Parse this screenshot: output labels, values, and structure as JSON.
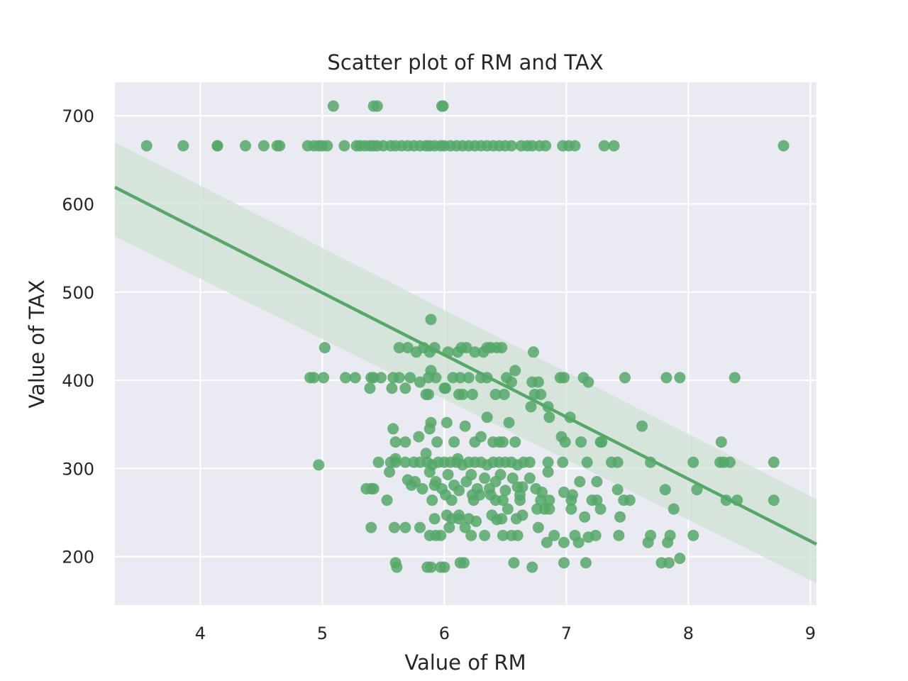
{
  "chart_data": {
    "type": "scatter",
    "title": "Scatter plot of RM and TAX",
    "xlabel": "Value of RM",
    "ylabel": "Value of TAX",
    "xlim": [
      3.3,
      9.05
    ],
    "ylim": [
      145,
      738
    ],
    "xticks": [
      4,
      5,
      6,
      7,
      8,
      9
    ],
    "yticks": [
      200,
      300,
      400,
      500,
      600,
      700
    ],
    "grid": true,
    "legend": "none",
    "colors": {
      "background": "#eaeaf2",
      "grid": "#ffffff",
      "points": "#55a868",
      "band": "#cfe1d4",
      "line": "#55a868"
    },
    "regression": {
      "intercept": 851.2,
      "slope": -70.4,
      "ci_lower_left": 563,
      "ci_upper_left": 670,
      "ci_lower_right": 170,
      "ci_upper_right": 265
    },
    "points": [
      [
        3.56,
        666
      ],
      [
        3.86,
        666
      ],
      [
        4.14,
        666
      ],
      [
        4.14,
        666
      ],
      [
        4.37,
        666
      ],
      [
        4.52,
        666
      ],
      [
        4.63,
        666
      ],
      [
        4.65,
        666
      ],
      [
        4.88,
        666
      ],
      [
        4.93,
        666
      ],
      [
        4.97,
        666
      ],
      [
        5.0,
        666
      ],
      [
        5.04,
        666
      ],
      [
        5.18,
        666
      ],
      [
        5.28,
        666
      ],
      [
        5.31,
        666
      ],
      [
        5.35,
        666
      ],
      [
        5.39,
        666
      ],
      [
        5.42,
        666
      ],
      [
        5.45,
        666
      ],
      [
        5.5,
        666
      ],
      [
        5.56,
        666
      ],
      [
        5.6,
        666
      ],
      [
        5.65,
        666
      ],
      [
        5.7,
        666
      ],
      [
        5.75,
        666
      ],
      [
        5.8,
        666
      ],
      [
        5.85,
        666
      ],
      [
        5.88,
        666
      ],
      [
        5.92,
        666
      ],
      [
        5.97,
        666
      ],
      [
        6.0,
        666
      ],
      [
        6.05,
        666
      ],
      [
        6.1,
        666
      ],
      [
        6.15,
        666
      ],
      [
        6.2,
        666
      ],
      [
        6.25,
        666
      ],
      [
        6.3,
        666
      ],
      [
        6.35,
        666
      ],
      [
        6.4,
        666
      ],
      [
        6.45,
        666
      ],
      [
        6.5,
        666
      ],
      [
        6.55,
        666
      ],
      [
        6.63,
        666
      ],
      [
        6.68,
        666
      ],
      [
        6.72,
        666
      ],
      [
        6.78,
        666
      ],
      [
        6.83,
        666
      ],
      [
        6.97,
        666
      ],
      [
        7.02,
        666
      ],
      [
        7.07,
        666
      ],
      [
        7.31,
        666
      ],
      [
        7.39,
        666
      ],
      [
        8.78,
        666
      ],
      [
        5.09,
        711
      ],
      [
        5.42,
        711
      ],
      [
        5.45,
        711
      ],
      [
        5.98,
        711
      ],
      [
        5.99,
        711
      ],
      [
        5.89,
        469
      ],
      [
        5.02,
        437
      ],
      [
        5.63,
        437
      ],
      [
        5.7,
        437
      ],
      [
        5.77,
        432
      ],
      [
        5.83,
        437
      ],
      [
        5.88,
        432
      ],
      [
        5.92,
        437
      ],
      [
        6.03,
        432
      ],
      [
        6.11,
        432
      ],
      [
        6.14,
        437
      ],
      [
        6.18,
        437
      ],
      [
        6.25,
        432
      ],
      [
        6.32,
        432
      ],
      [
        6.35,
        437
      ],
      [
        6.38,
        437
      ],
      [
        6.43,
        437
      ],
      [
        6.47,
        437
      ],
      [
        6.73,
        432
      ],
      [
        4.9,
        403
      ],
      [
        4.93,
        403
      ],
      [
        5.01,
        403
      ],
      [
        5.19,
        403
      ],
      [
        5.27,
        403
      ],
      [
        5.4,
        403
      ],
      [
        5.42,
        403
      ],
      [
        5.48,
        403
      ],
      [
        5.58,
        403
      ],
      [
        5.63,
        403
      ],
      [
        5.72,
        403
      ],
      [
        5.8,
        398
      ],
      [
        5.87,
        403
      ],
      [
        5.89,
        411
      ],
      [
        5.93,
        403
      ],
      [
        6.0,
        391
      ],
      [
        6.07,
        403
      ],
      [
        6.13,
        403
      ],
      [
        6.15,
        384
      ],
      [
        6.2,
        403
      ],
      [
        6.23,
        384
      ],
      [
        6.3,
        403
      ],
      [
        6.35,
        403
      ],
      [
        6.42,
        384
      ],
      [
        6.51,
        403
      ],
      [
        6.55,
        398
      ],
      [
        6.58,
        411
      ],
      [
        6.72,
        398
      ],
      [
        6.77,
        398
      ],
      [
        6.79,
        384
      ],
      [
        6.95,
        403
      ],
      [
        6.98,
        403
      ],
      [
        7.14,
        403
      ],
      [
        7.18,
        398
      ],
      [
        7.48,
        403
      ],
      [
        7.82,
        403
      ],
      [
        7.93,
        403
      ],
      [
        8.38,
        403
      ],
      [
        5.39,
        391
      ],
      [
        5.57,
        391
      ],
      [
        5.68,
        391
      ],
      [
        5.85,
        384
      ],
      [
        5.87,
        384
      ],
      [
        6.01,
        391
      ],
      [
        6.12,
        384
      ],
      [
        6.49,
        384
      ],
      [
        6.74,
        384
      ],
      [
        5.58,
        345
      ],
      [
        5.6,
        330
      ],
      [
        5.68,
        330
      ],
      [
        5.79,
        336
      ],
      [
        5.85,
        317
      ],
      [
        5.88,
        345
      ],
      [
        5.89,
        352
      ],
      [
        5.94,
        330
      ],
      [
        6.02,
        352
      ],
      [
        6.08,
        330
      ],
      [
        6.11,
        311
      ],
      [
        6.17,
        348
      ],
      [
        6.25,
        330
      ],
      [
        6.3,
        336
      ],
      [
        6.35,
        358
      ],
      [
        6.4,
        330
      ],
      [
        6.45,
        330
      ],
      [
        6.48,
        330
      ],
      [
        6.53,
        352
      ],
      [
        6.58,
        330
      ],
      [
        6.85,
        370
      ],
      [
        6.86,
        358
      ],
      [
        6.96,
        336
      ],
      [
        7.03,
        358
      ],
      [
        7.12,
        330
      ],
      [
        7.29,
        330
      ],
      [
        7.62,
        348
      ],
      [
        8.27,
        330
      ],
      [
        6.71,
        370
      ],
      [
        6.99,
        330
      ],
      [
        7.28,
        330
      ],
      [
        4.97,
        304
      ],
      [
        5.46,
        307
      ],
      [
        5.56,
        307
      ],
      [
        5.6,
        307
      ],
      [
        5.68,
        307
      ],
      [
        5.75,
        307
      ],
      [
        5.8,
        307
      ],
      [
        5.86,
        307
      ],
      [
        5.9,
        304
      ],
      [
        5.95,
        307
      ],
      [
        6.0,
        307
      ],
      [
        6.05,
        307
      ],
      [
        6.1,
        307
      ],
      [
        6.15,
        304
      ],
      [
        6.2,
        307
      ],
      [
        6.25,
        307
      ],
      [
        6.3,
        307
      ],
      [
        6.35,
        304
      ],
      [
        6.4,
        307
      ],
      [
        6.45,
        307
      ],
      [
        6.5,
        307
      ],
      [
        6.55,
        307
      ],
      [
        6.6,
        304
      ],
      [
        6.65,
        307
      ],
      [
        6.7,
        307
      ],
      [
        6.85,
        307
      ],
      [
        6.97,
        307
      ],
      [
        7.17,
        307
      ],
      [
        7.37,
        307
      ],
      [
        7.42,
        307
      ],
      [
        7.69,
        307
      ],
      [
        8.04,
        307
      ],
      [
        8.26,
        307
      ],
      [
        8.29,
        307
      ],
      [
        8.34,
        307
      ],
      [
        8.7,
        307
      ],
      [
        5.55,
        296
      ],
      [
        5.6,
        311
      ],
      [
        5.7,
        287
      ],
      [
        5.76,
        285
      ],
      [
        5.82,
        277
      ],
      [
        5.88,
        296
      ],
      [
        5.92,
        281
      ],
      [
        5.98,
        277
      ],
      [
        6.03,
        293
      ],
      [
        6.08,
        281
      ],
      [
        6.12,
        275
      ],
      [
        6.18,
        285
      ],
      [
        6.22,
        293
      ],
      [
        6.27,
        277
      ],
      [
        6.33,
        289
      ],
      [
        6.37,
        277
      ],
      [
        6.42,
        285
      ],
      [
        6.46,
        293
      ],
      [
        6.5,
        275
      ],
      [
        6.56,
        289
      ],
      [
        6.6,
        279
      ],
      [
        6.64,
        279
      ],
      [
        6.7,
        289
      ],
      [
        6.75,
        277
      ],
      [
        6.8,
        273
      ],
      [
        6.85,
        296
      ],
      [
        6.98,
        273
      ],
      [
        7.05,
        270
      ],
      [
        7.11,
        285
      ],
      [
        7.25,
        285
      ],
      [
        7.42,
        276
      ],
      [
        7.81,
        276
      ],
      [
        8.07,
        276
      ],
      [
        5.36,
        277
      ],
      [
        5.4,
        277
      ],
      [
        5.42,
        277
      ],
      [
        5.73,
        281
      ],
      [
        5.93,
        285
      ],
      [
        6.01,
        270
      ],
      [
        6.23,
        270
      ],
      [
        6.29,
        270
      ],
      [
        6.38,
        270
      ],
      [
        6.62,
        270
      ],
      [
        5.53,
        264
      ],
      [
        5.9,
        264
      ],
      [
        6.06,
        264
      ],
      [
        6.24,
        264
      ],
      [
        6.42,
        264
      ],
      [
        6.48,
        264
      ],
      [
        6.62,
        264
      ],
      [
        6.79,
        264
      ],
      [
        6.86,
        264
      ],
      [
        7.04,
        264
      ],
      [
        7.21,
        264
      ],
      [
        7.25,
        264
      ],
      [
        7.47,
        264
      ],
      [
        7.52,
        264
      ],
      [
        8.31,
        264
      ],
      [
        8.4,
        264
      ],
      [
        8.7,
        264
      ],
      [
        6.76,
        254
      ],
      [
        6.86,
        254
      ],
      [
        7.04,
        254
      ],
      [
        7.28,
        254
      ],
      [
        7.88,
        254
      ],
      [
        6.52,
        254
      ],
      [
        6.82,
        254
      ],
      [
        5.4,
        233
      ],
      [
        5.59,
        233
      ],
      [
        5.68,
        233
      ],
      [
        5.8,
        233
      ],
      [
        5.88,
        224
      ],
      [
        5.93,
        224
      ],
      [
        5.97,
        224
      ],
      [
        6.02,
        247
      ],
      [
        6.04,
        233
      ],
      [
        6.12,
        247
      ],
      [
        6.17,
        233
      ],
      [
        6.22,
        224
      ],
      [
        6.26,
        240
      ],
      [
        6.33,
        224
      ],
      [
        6.39,
        247
      ],
      [
        6.43,
        242
      ],
      [
        6.48,
        224
      ],
      [
        6.55,
        224
      ],
      [
        6.6,
        224
      ],
      [
        6.64,
        247
      ],
      [
        6.77,
        233
      ],
      [
        6.84,
        216
      ],
      [
        6.9,
        224
      ],
      [
        6.98,
        216
      ],
      [
        7.07,
        224
      ],
      [
        7.1,
        216
      ],
      [
        7.15,
        245
      ],
      [
        7.18,
        222
      ],
      [
        7.24,
        224
      ],
      [
        7.43,
        224
      ],
      [
        7.44,
        245
      ],
      [
        7.67,
        216
      ],
      [
        7.69,
        224
      ],
      [
        7.83,
        216
      ],
      [
        7.85,
        224
      ],
      [
        8.04,
        224
      ],
      [
        5.92,
        243
      ],
      [
        6.06,
        243
      ],
      [
        6.2,
        243
      ],
      [
        6.12,
        243
      ],
      [
        6.47,
        243
      ],
      [
        6.59,
        243
      ],
      [
        5.6,
        193
      ],
      [
        5.61,
        188
      ],
      [
        5.86,
        188
      ],
      [
        5.89,
        188
      ],
      [
        5.97,
        188
      ],
      [
        6.0,
        188
      ],
      [
        6.13,
        193
      ],
      [
        6.16,
        193
      ],
      [
        6.57,
        193
      ],
      [
        6.72,
        188
      ],
      [
        6.98,
        193
      ],
      [
        7.16,
        193
      ],
      [
        7.78,
        193
      ],
      [
        7.84,
        193
      ],
      [
        7.93,
        198
      ]
    ]
  }
}
